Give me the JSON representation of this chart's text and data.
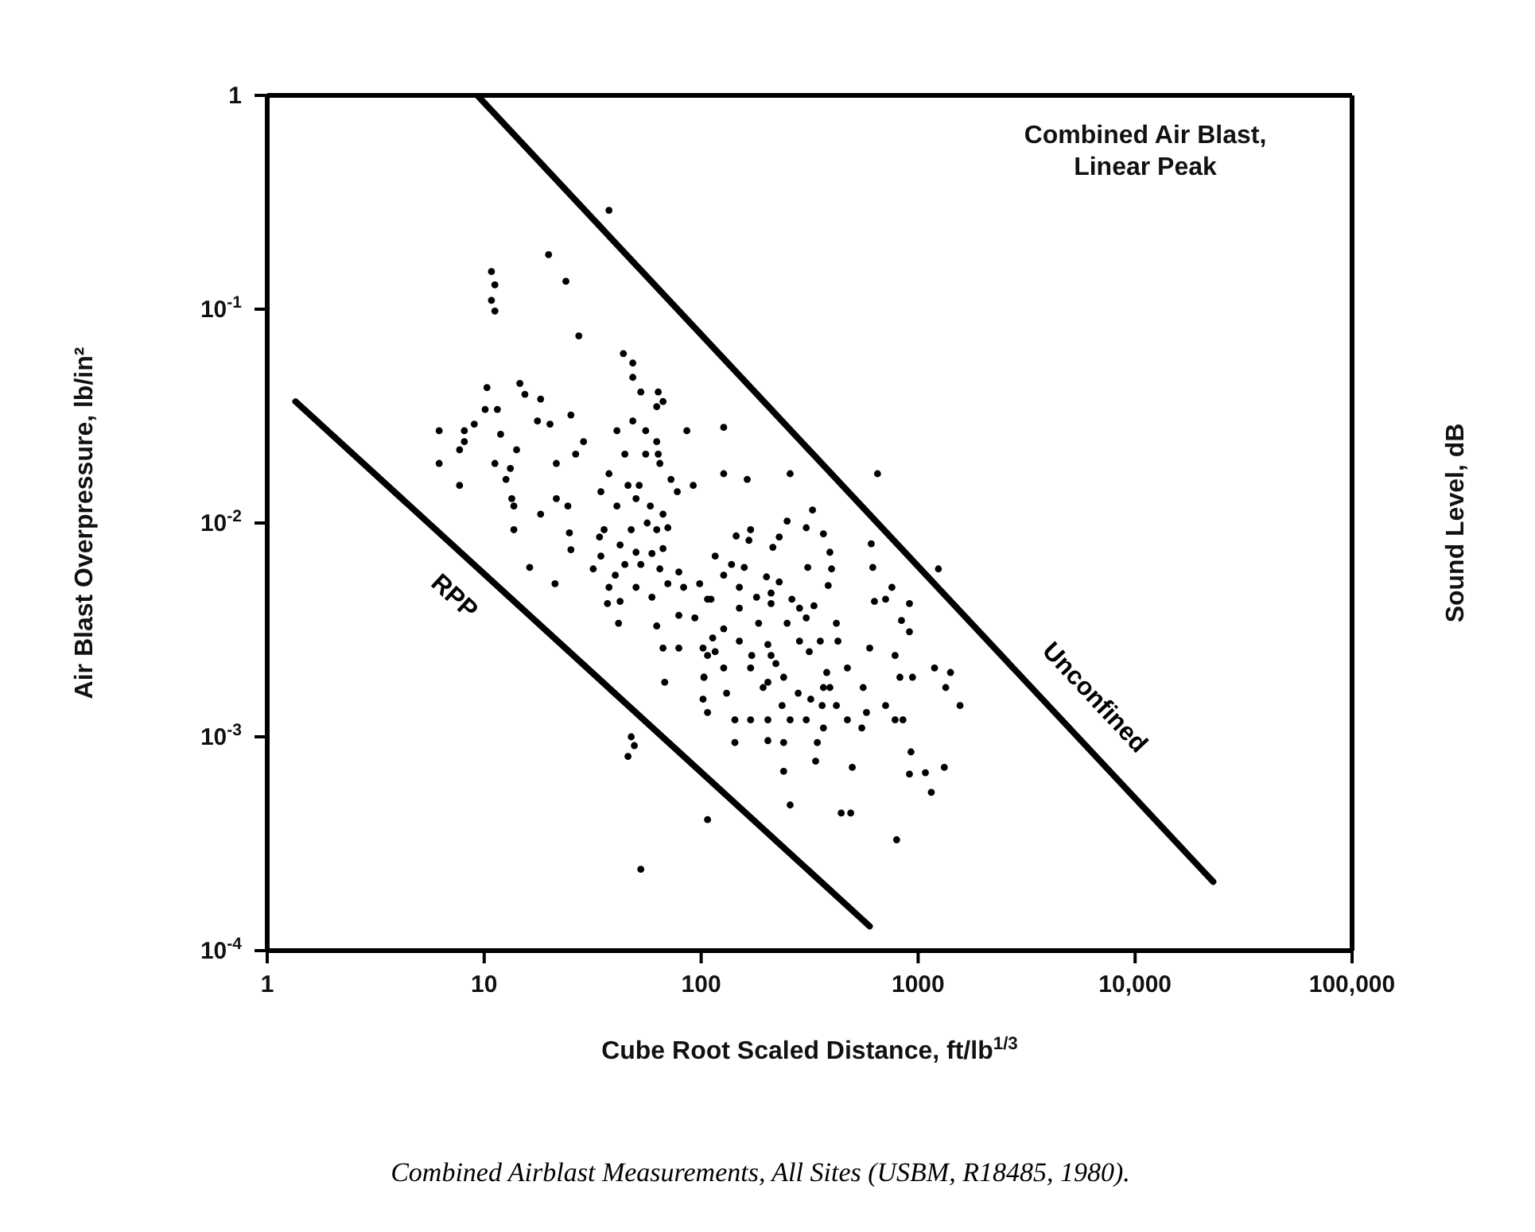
{
  "chart_data": {
    "type": "scatter",
    "xlabel": "Cube Root Scaled Distance, ft/lb$^{1/3}$",
    "ylabel": "Air Blast Overpressure, lb/in²",
    "y2label": "Sound Level, dB",
    "annotations": [
      "Combined Air Blast,\nLinear Peak",
      "Combined Airblast Measurements, All Sites (USBM, R18485, 1980)."
    ],
    "log": "xy",
    "grid": false,
    "legend": false,
    "marker": "circle",
    "xlim": [
      1,
      100000
    ],
    "xticks": [
      1,
      10,
      100,
      1000,
      {
        "value": 10000,
        "label": "10,000"
      },
      {
        "value": 100000,
        "label": "100,000"
      }
    ],
    "ylim": [
      0.0001,
      1
    ],
    "yticks": [
      {
        "value": 0.0001,
        "label": "10$^{-4}$"
      },
      {
        "value": 0.001,
        "label": "10$^{-3}$"
      },
      {
        "value": 0.01,
        "label": "10$^{-2}$"
      },
      {
        "value": 0.1,
        "label": "10$^{-1}$"
      },
      1
    ],
    "series": [
      {
        "color": "#000000",
        "x": [
          37.6,
          19.8,
          10.8,
          11.2,
          10.8,
          11.2,
          23.8,
          27.3,
          43.8,
          48.4,
          48.4,
          52.7,
          63.4,
          66.7,
          62.4,
          14.6,
          10.3,
          15.4,
          18.2,
          10.1,
          11.5,
          17.6,
          20.1,
          25.1,
          9.0,
          6.2,
          8.1,
          8.1,
          7.7,
          11.9,
          14.1,
          6.2,
          11.2,
          13.2,
          12.6,
          7.7,
          13.4,
          21.5,
          26.4,
          28.7,
          40.9,
          48.4,
          55.5,
          44.5,
          55.5,
          62.4,
          63.4,
          64.5,
          72.6,
          85.9,
          127,
          127,
          91.9,
          77.6,
          37.6,
          34.5,
          46.0,
          51.8,
          50.1,
          58.3,
          21.5,
          13.7,
          18.2,
          13.7,
          24.3,
          24.7,
          25.1,
          16.2,
          21.2,
          40.9,
          35.7,
          34.0,
          47.6,
          56.4,
          66.7,
          62.4,
          70.2,
          42.3,
          50.1,
          59.3,
          66.7,
          34.5,
          44.5,
          52.7,
          64.5,
          40.2,
          31.8,
          50.1,
          59.3,
          70.2,
          78.9,
          37.6,
          37.0,
          42.3,
          41.6,
          83.0,
          98.4,
          78.9,
          93.5,
          111,
          62.4,
          66.7,
          78.9,
          102,
          116,
          67.9,
          103,
          102,
          107,
          47.6,
          49.2,
          46.0,
          107,
          52.7,
          163,
          257,
          650,
          326,
          249,
          305,
          366,
          169,
          145,
          229,
          166,
          214,
          392,
          608,
          116,
          138,
          158,
          310,
          399,
          618,
          1240,
          127,
          200,
          229,
          385,
          757,
          150,
          180,
          210,
          262,
          629,
          708,
          912,
          107,
          150,
          210,
          284,
          331,
          305,
          184,
          249,
          420,
          838,
          912,
          127,
          113,
          150,
          203,
          284,
          354,
          427,
          315,
          598,
          783,
          107,
          171,
          210,
          127,
          221,
          169,
          472,
          379,
          103,
          240,
          366,
          392,
          558,
          824,
          942,
          1190,
          1410,
          1340,
          203,
          131,
          193,
          280,
          320,
          236,
          361,
          420,
          143,
          169,
          203,
          257,
          305,
          472,
          578,
          708,
          783,
          851,
          1560,
          366,
          550,
          143,
          203,
          240,
          343,
          927,
          337,
          497,
          240,
          912,
          1080,
          1320,
          1150,
          257,
          442,
          489,
          796
        ],
        "values": [
          0.29,
          0.18,
          0.15,
          0.13,
          0.11,
          0.098,
          0.135,
          0.075,
          0.062,
          0.056,
          0.048,
          0.041,
          0.041,
          0.037,
          0.035,
          0.045,
          0.043,
          0.04,
          0.038,
          0.034,
          0.034,
          0.03,
          0.029,
          0.032,
          0.029,
          0.027,
          0.027,
          0.024,
          0.022,
          0.026,
          0.022,
          0.019,
          0.019,
          0.018,
          0.016,
          0.015,
          0.013,
          0.019,
          0.021,
          0.024,
          0.027,
          0.03,
          0.027,
          0.021,
          0.021,
          0.024,
          0.021,
          0.019,
          0.016,
          0.027,
          0.028,
          0.017,
          0.015,
          0.014,
          0.017,
          0.014,
          0.015,
          0.015,
          0.013,
          0.012,
          0.013,
          0.012,
          0.011,
          0.0093,
          0.012,
          0.009,
          0.0075,
          0.0062,
          0.0052,
          0.012,
          0.0093,
          0.0086,
          0.0093,
          0.01,
          0.011,
          0.0093,
          0.0095,
          0.0079,
          0.0073,
          0.0072,
          0.0076,
          0.007,
          0.0064,
          0.0064,
          0.0061,
          0.0057,
          0.0061,
          0.005,
          0.0045,
          0.0052,
          0.0059,
          0.005,
          0.0042,
          0.0043,
          0.0034,
          0.005,
          0.0052,
          0.0037,
          0.0036,
          0.0044,
          0.0033,
          0.0026,
          0.0026,
          0.0026,
          0.0025,
          0.0018,
          0.0019,
          0.0015,
          0.0013,
          0.001,
          0.00091,
          0.00081,
          0.00041,
          0.00024,
          0.016,
          0.017,
          0.017,
          0.0115,
          0.0102,
          0.0095,
          0.0089,
          0.0093,
          0.0087,
          0.0086,
          0.0083,
          0.0077,
          0.0073,
          0.008,
          0.007,
          0.0064,
          0.0062,
          0.0062,
          0.0061,
          0.0062,
          0.0061,
          0.0057,
          0.0056,
          0.0053,
          0.0051,
          0.005,
          0.005,
          0.0045,
          0.0047,
          0.0044,
          0.0043,
          0.0044,
          0.0042,
          0.0044,
          0.004,
          0.0042,
          0.004,
          0.0041,
          0.0036,
          0.0034,
          0.0034,
          0.0034,
          0.0035,
          0.0031,
          0.0032,
          0.0029,
          0.0028,
          0.0027,
          0.0028,
          0.0028,
          0.0028,
          0.0025,
          0.0026,
          0.0024,
          0.0024,
          0.0024,
          0.0024,
          0.0021,
          0.0022,
          0.0021,
          0.0021,
          0.002,
          0.0019,
          0.0019,
          0.0017,
          0.0017,
          0.0017,
          0.0019,
          0.0019,
          0.0021,
          0.002,
          0.0017,
          0.0018,
          0.0016,
          0.0017,
          0.0016,
          0.0015,
          0.0014,
          0.0014,
          0.0014,
          0.0012,
          0.0012,
          0.0012,
          0.0012,
          0.0012,
          0.0012,
          0.0013,
          0.0014,
          0.0012,
          0.0012,
          0.0014,
          0.0011,
          0.0011,
          0.00094,
          0.00096,
          0.00094,
          0.00094,
          0.00085,
          0.00077,
          0.00072,
          0.00069,
          0.00067,
          0.00068,
          0.00072,
          0.00055,
          0.00048,
          0.00044,
          0.00044,
          0.00033
        ]
      },
      {
        "type": "line",
        "name": "Unconfined",
        "color": "#000000",
        "marker": "none",
        "x": [
          9.3,
          22900
        ],
        "values": [
          1,
          0.00021
        ]
      },
      {
        "type": "line",
        "name": "RPP",
        "color": "#000000",
        "marker": "none",
        "x": [
          1.35,
          598
        ],
        "values": [
          0.037,
          0.00013
        ]
      }
    ]
  }
}
